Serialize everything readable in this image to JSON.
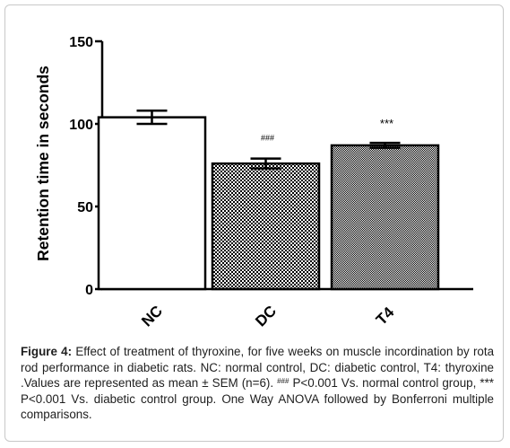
{
  "chart_data": {
    "type": "bar",
    "categories": [
      "NC",
      "DC",
      "T4"
    ],
    "values": [
      104,
      76,
      87
    ],
    "sem": [
      4,
      3,
      1.5
    ],
    "significance": [
      "",
      "###",
      "***"
    ],
    "ylabel": "Retention time in seconds",
    "xlabel": "",
    "ylim": [
      0,
      150
    ],
    "yticks": [
      0,
      50,
      100,
      150
    ],
    "bar_patterns": [
      "none",
      "checker-coarse",
      "checker-fine"
    ],
    "grid": false,
    "colors": {
      "bar_edge": "#000000",
      "bar_fill": "#ffffff",
      "text": "#000000"
    }
  },
  "caption": {
    "label": "Figure 4:",
    "text_1": " Effect of treatment of thyroxine, for five weeks on muscle incordination by rota rod performance in diabetic rats. NC: normal control, DC: diabetic control, T4: thyroxine .Values are represented as mean ± SEM (n=6). ",
    "sup": "###",
    "text_2": " P<0.001 Vs. normal control group, *** P<0.001 Vs. diabetic control group. One Way ANOVA followed by Bonferroni multiple comparisons."
  }
}
